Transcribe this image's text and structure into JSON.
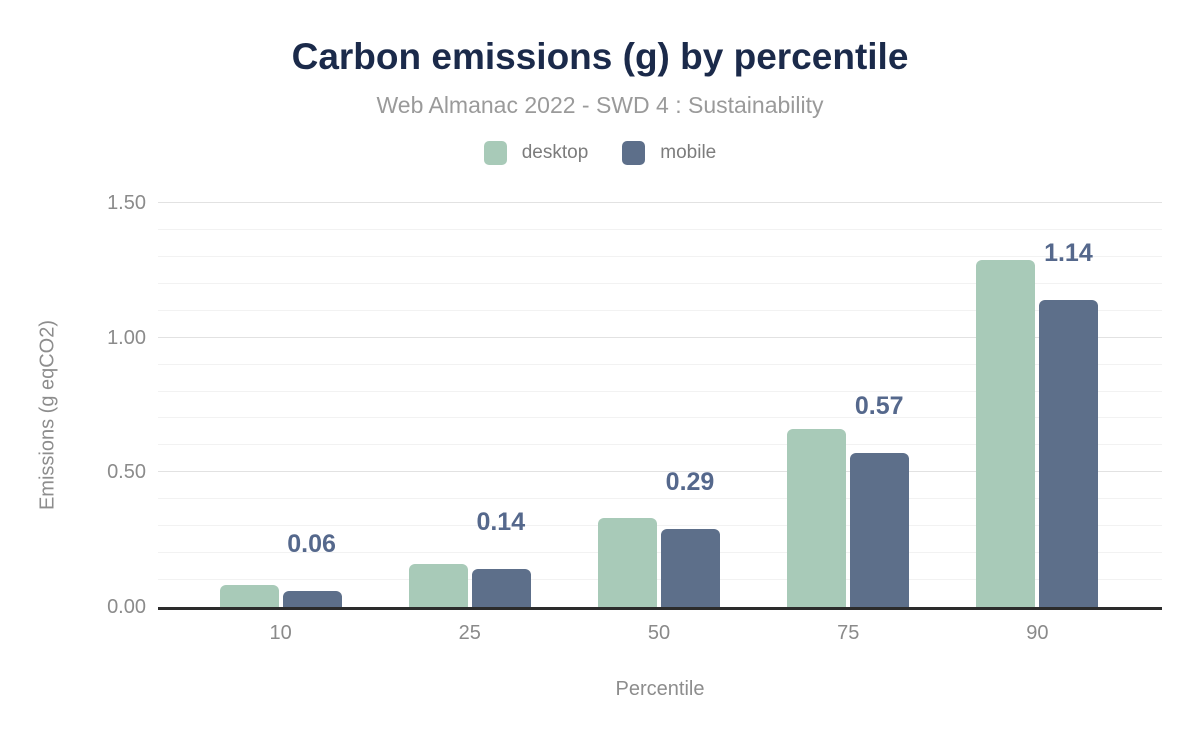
{
  "title": "Carbon emissions (g) by percentile",
  "subtitle": "Web Almanac 2022 - SWD 4 : Sustainability",
  "legend": {
    "items": [
      {
        "label": "desktop",
        "color": "#a8cab8"
      },
      {
        "label": "mobile",
        "color": "#5d6f8a"
      }
    ]
  },
  "chart_data": {
    "type": "bar",
    "title": "Carbon emissions (g) by percentile",
    "subtitle": "Web Almanac 2022 - SWD 4 : Sustainability",
    "categories": [
      "10",
      "25",
      "50",
      "75",
      "90"
    ],
    "series": [
      {
        "name": "desktop",
        "color": "#a8cab8",
        "values": [
          0.08,
          0.16,
          0.33,
          0.66,
          1.29
        ]
      },
      {
        "name": "mobile",
        "color": "#5d6f8a",
        "values": [
          0.06,
          0.14,
          0.29,
          0.57,
          1.14
        ]
      }
    ],
    "value_labels": {
      "series": "mobile",
      "texts": [
        "0.06",
        "0.14",
        "0.29",
        "0.57",
        "1.14"
      ],
      "color": "#55688c"
    },
    "xlabel": "Percentile",
    "ylabel": "Emissions (g eqCO2)",
    "ylim": [
      0,
      1.5
    ],
    "yticks": [
      {
        "value": 0.0,
        "label": "0.00"
      },
      {
        "value": 0.5,
        "label": "0.50"
      },
      {
        "value": 1.0,
        "label": "1.00"
      },
      {
        "value": 1.5,
        "label": "1.50"
      }
    ],
    "grid": {
      "minor_step": 0.1,
      "major_step": 0.5,
      "minor_color": "#f2f2f2",
      "major_color": "#e2e2e2"
    },
    "axis_line_color": "#2c2c2c",
    "legend_position": "top",
    "background_color": "#ffffff",
    "title_color": "#1b2a4a",
    "subtitle_color": "#9a9a9a",
    "tick_label_color": "#8b8b8b"
  }
}
